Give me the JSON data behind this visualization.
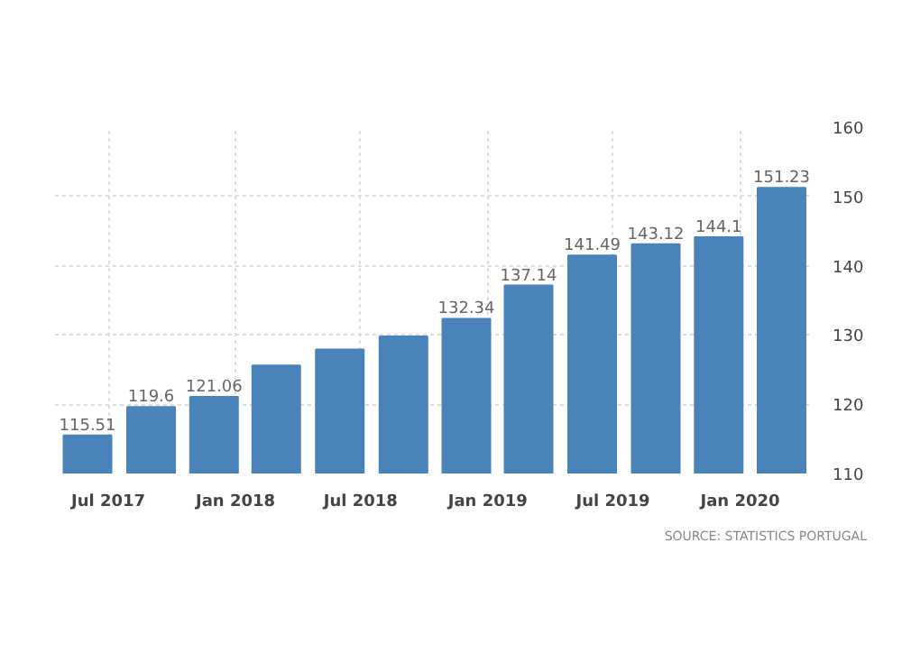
{
  "chart_data": {
    "type": "bar",
    "x": [
      "2017-06",
      "2017-09",
      "2017-12",
      "2018-03",
      "2018-06",
      "2018-09",
      "2018-12",
      "2019-03",
      "2019-06",
      "2019-09",
      "2019-12",
      "2020-03"
    ],
    "values": [
      115.51,
      119.6,
      121.06,
      125.6,
      127.9,
      129.8,
      132.34,
      137.14,
      141.49,
      143.12,
      144.1,
      151.23
    ],
    "value_labels": [
      "115.51",
      "119.6",
      "121.06",
      null,
      null,
      null,
      "132.34",
      "137.14",
      "141.49",
      "143.12",
      "144.1",
      "151.23"
    ],
    "color": "#4a83b9",
    "xlim": [
      "2017-04-15",
      "2020-04-15"
    ],
    "xticks": [
      {
        "value": "2017-07",
        "label": "Jul 2017"
      },
      {
        "value": "2018-01",
        "label": "Jan 2018"
      },
      {
        "value": "2018-07",
        "label": "Jul 2018"
      },
      {
        "value": "2019-01",
        "label": "Jan 2019"
      },
      {
        "value": "2019-07",
        "label": "Jul 2019"
      },
      {
        "value": "2020-01",
        "label": "Jan 2020"
      }
    ],
    "ylim": [
      110,
      160
    ],
    "yticks": [
      110,
      120,
      130,
      140,
      150,
      160
    ],
    "grid": true,
    "annotations": [
      "SOURCE: STATISTICS PORTUGAL"
    ]
  }
}
